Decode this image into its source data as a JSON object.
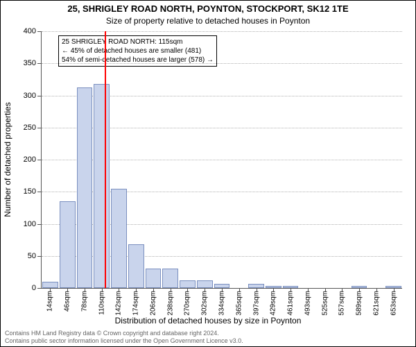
{
  "title_main": "25, SHRIGLEY ROAD NORTH, POYNTON, STOCKPORT, SK12 1TE",
  "title_sub": "Size of property relative to detached houses in Poynton",
  "y_axis_title": "Number of detached properties",
  "x_axis_title": "Distribution of detached houses by size in Poynton",
  "footer_line1": "Contains HM Land Registry data © Crown copyright and database right 2024.",
  "footer_line2": "Contains public sector information licensed under the Open Government Licence v3.0.",
  "chart": {
    "type": "histogram",
    "ylim": [
      0,
      400
    ],
    "ytick_step": 50,
    "yticks": [
      0,
      50,
      100,
      150,
      200,
      250,
      300,
      350,
      400
    ],
    "xlabels": [
      "14sqm",
      "46sqm",
      "78sqm",
      "110sqm",
      "142sqm",
      "174sqm",
      "206sqm",
      "238sqm",
      "270sqm",
      "302sqm",
      "334sqm",
      "365sqm",
      "397sqm",
      "429sqm",
      "461sqm",
      "493sqm",
      "525sqm",
      "557sqm",
      "589sqm",
      "621sqm",
      "653sqm"
    ],
    "values": [
      10,
      135,
      312,
      318,
      155,
      68,
      30,
      30,
      12,
      12,
      6,
      0,
      6,
      3,
      3,
      0,
      0,
      0,
      3,
      0,
      3
    ],
    "bar_fill": "#c9d4ec",
    "bar_stroke": "#7a8fbf",
    "background_color": "#ffffff",
    "grid_color": "#b0b0b0",
    "text_color": "#000000",
    "marker": {
      "position_index": 3.16,
      "color": "#ff0000"
    },
    "annotation": {
      "lines": [
        "25 SHRIGLEY ROAD NORTH: 115sqm",
        "← 45% of detached houses are smaller (481)",
        "54% of semi-detached houses are larger (578) →"
      ],
      "border_color": "#000000",
      "bg_color": "#ffffff"
    }
  }
}
